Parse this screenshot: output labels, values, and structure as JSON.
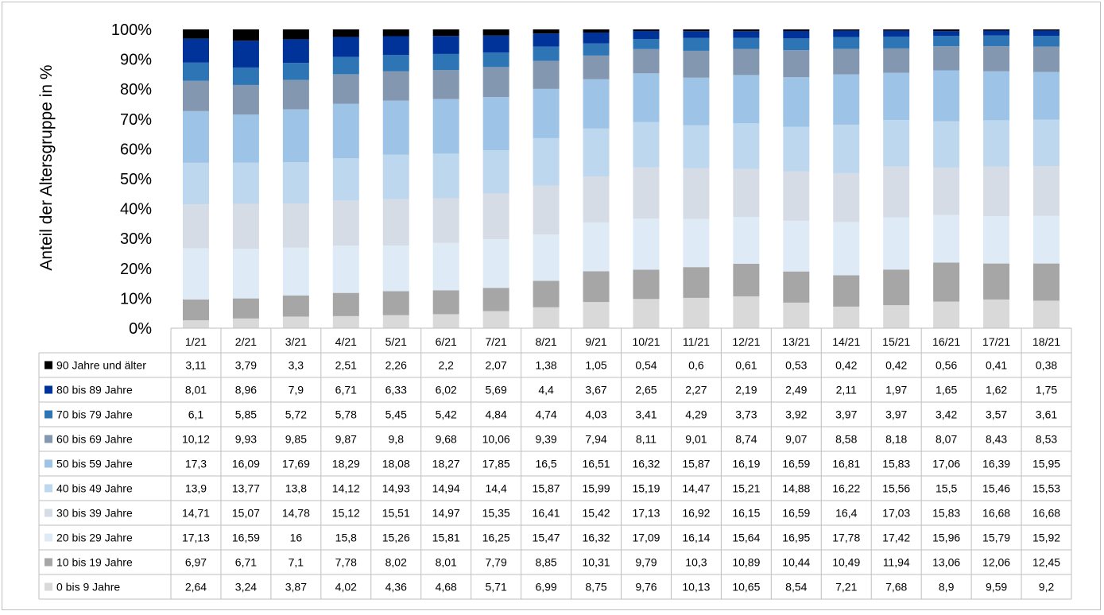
{
  "chart_data": {
    "type": "bar",
    "stacked": true,
    "percent_stacked": true,
    "ylabel": "Anteil der Altersgruppe in %",
    "y_ticks": [
      "0%",
      "10%",
      "20%",
      "30%",
      "40%",
      "50%",
      "60%",
      "70%",
      "80%",
      "90%",
      "100%"
    ],
    "ylim": [
      0,
      100
    ],
    "grid": false,
    "legend": "data-table",
    "categories": [
      "1/21",
      "2/21",
      "3/21",
      "4/21",
      "5/21",
      "6/21",
      "7/21",
      "8/21",
      "9/21",
      "10/21",
      "11/21",
      "12/21",
      "13/21",
      "14/21",
      "15/21",
      "16/21",
      "17/21",
      "18/21"
    ],
    "series": [
      {
        "name": "0 bis 9 Jahre",
        "color": "#d9d9d9",
        "values": [
          2.64,
          3.24,
          3.87,
          4.02,
          4.36,
          4.68,
          5.71,
          6.99,
          8.75,
          9.76,
          10.13,
          10.65,
          8.54,
          7.21,
          7.68,
          8.9,
          9.59,
          9.2
        ],
        "labels": [
          "2,64",
          "3,24",
          "3,87",
          "4,02",
          "4,36",
          "4,68",
          "5,71",
          "6,99",
          "8,75",
          "9,76",
          "10,13",
          "10,65",
          "8,54",
          "7,21",
          "7,68",
          "8,9",
          "9,59",
          "9,2"
        ]
      },
      {
        "name": "10 bis 19 Jahre",
        "color": "#a6a6a6",
        "values": [
          6.97,
          6.71,
          7.1,
          7.78,
          8.02,
          8.01,
          7.79,
          8.85,
          10.31,
          9.79,
          10.3,
          10.89,
          10.44,
          10.49,
          11.94,
          13.06,
          12.06,
          12.45
        ],
        "labels": [
          "6,97",
          "6,71",
          "7,1",
          "7,78",
          "8,02",
          "8,01",
          "7,79",
          "8,85",
          "10,31",
          "9,79",
          "10,3",
          "10,89",
          "10,44",
          "10,49",
          "11,94",
          "13,06",
          "12,06",
          "12,45"
        ]
      },
      {
        "name": "20 bis 29 Jahre",
        "color": "#deebf7",
        "values": [
          17.13,
          16.59,
          16,
          15.8,
          15.26,
          15.81,
          16.25,
          15.47,
          16.32,
          17.09,
          16.14,
          15.64,
          16.95,
          17.78,
          17.42,
          15.96,
          15.79,
          15.92
        ],
        "labels": [
          "17,13",
          "16,59",
          "16",
          "15,8",
          "15,26",
          "15,81",
          "16,25",
          "15,47",
          "16,32",
          "17,09",
          "16,14",
          "15,64",
          "16,95",
          "17,78",
          "17,42",
          "15,96",
          "15,79",
          "15,92"
        ]
      },
      {
        "name": "30 bis 39 Jahre",
        "color": "#d6dce5",
        "values": [
          14.71,
          15.07,
          14.78,
          15.12,
          15.51,
          14.97,
          15.35,
          16.41,
          15.42,
          17.13,
          16.92,
          16.15,
          16.59,
          16.4,
          17.03,
          15.83,
          16.68,
          16.68
        ],
        "labels": [
          "14,71",
          "15,07",
          "14,78",
          "15,12",
          "15,51",
          "14,97",
          "15,35",
          "16,41",
          "15,42",
          "17,13",
          "16,92",
          "16,15",
          "16,59",
          "16,4",
          "17,03",
          "15,83",
          "16,68",
          "16,68"
        ]
      },
      {
        "name": "40 bis 49 Jahre",
        "color": "#bdd7ee",
        "values": [
          13.9,
          13.77,
          13.8,
          14.12,
          14.93,
          14.94,
          14.4,
          15.87,
          15.99,
          15.19,
          14.47,
          15.21,
          14.88,
          16.22,
          15.56,
          15.5,
          15.46,
          15.53
        ],
        "labels": [
          "13,9",
          "13,77",
          "13,8",
          "14,12",
          "14,93",
          "14,94",
          "14,4",
          "15,87",
          "15,99",
          "15,19",
          "14,47",
          "15,21",
          "14,88",
          "16,22",
          "15,56",
          "15,5",
          "15,46",
          "15,53"
        ]
      },
      {
        "name": "50 bis 59 Jahre",
        "color": "#9dc3e6",
        "values": [
          17.3,
          16.09,
          17.69,
          18.29,
          18.08,
          18.27,
          17.85,
          16.5,
          16.51,
          16.32,
          15.87,
          16.19,
          16.59,
          16.81,
          15.83,
          17.06,
          16.39,
          15.95
        ],
        "labels": [
          "17,3",
          "16,09",
          "17,69",
          "18,29",
          "18,08",
          "18,27",
          "17,85",
          "16,5",
          "16,51",
          "16,32",
          "15,87",
          "16,19",
          "16,59",
          "16,81",
          "15,83",
          "17,06",
          "16,39",
          "15,95"
        ]
      },
      {
        "name": "60 bis 69 Jahre",
        "color": "#8497b0",
        "values": [
          10.12,
          9.93,
          9.85,
          9.87,
          9.8,
          9.68,
          10.06,
          9.39,
          7.94,
          8.11,
          9.01,
          8.74,
          9.07,
          8.58,
          8.18,
          8.07,
          8.43,
          8.53
        ],
        "labels": [
          "10,12",
          "9,93",
          "9,85",
          "9,87",
          "9,8",
          "9,68",
          "10,06",
          "9,39",
          "7,94",
          "8,11",
          "9,01",
          "8,74",
          "9,07",
          "8,58",
          "8,18",
          "8,07",
          "8,43",
          "8,53"
        ]
      },
      {
        "name": "70 bis 79 Jahre",
        "color": "#2e75b6",
        "values": [
          6.1,
          5.85,
          5.72,
          5.78,
          5.45,
          5.42,
          4.84,
          4.74,
          4.03,
          3.41,
          4.29,
          3.73,
          3.92,
          3.97,
          3.97,
          3.42,
          3.57,
          3.61
        ],
        "labels": [
          "6,1",
          "5,85",
          "5,72",
          "5,78",
          "5,45",
          "5,42",
          "4,84",
          "4,74",
          "4,03",
          "3,41",
          "4,29",
          "3,73",
          "3,92",
          "3,97",
          "3,97",
          "3,42",
          "3,57",
          "3,61"
        ]
      },
      {
        "name": "80 bis 89 Jahre",
        "color": "#003399",
        "values": [
          8.01,
          8.96,
          7.9,
          6.71,
          6.33,
          6.02,
          5.69,
          4.4,
          3.67,
          2.65,
          2.27,
          2.19,
          2.49,
          2.11,
          1.97,
          1.65,
          1.62,
          1.75
        ],
        "labels": [
          "8,01",
          "8,96",
          "7,9",
          "6,71",
          "6,33",
          "6,02",
          "5,69",
          "4,4",
          "3,67",
          "2,65",
          "2,27",
          "2,19",
          "2,49",
          "2,11",
          "1,97",
          "1,65",
          "1,62",
          "1,75"
        ]
      },
      {
        "name": "90 Jahre und älter",
        "color": "#000000",
        "values": [
          3.11,
          3.79,
          3.3,
          2.51,
          2.26,
          2.2,
          2.07,
          1.38,
          1.05,
          0.54,
          0.6,
          0.61,
          0.53,
          0.42,
          0.42,
          0.56,
          0.41,
          0.38
        ],
        "labels": [
          "3,11",
          "3,79",
          "3,3",
          "2,51",
          "2,26",
          "2,2",
          "2,07",
          "1,38",
          "1,05",
          "0,54",
          "0,6",
          "0,61",
          "0,53",
          "0,42",
          "0,42",
          "0,56",
          "0,41",
          "0,38"
        ]
      }
    ]
  }
}
